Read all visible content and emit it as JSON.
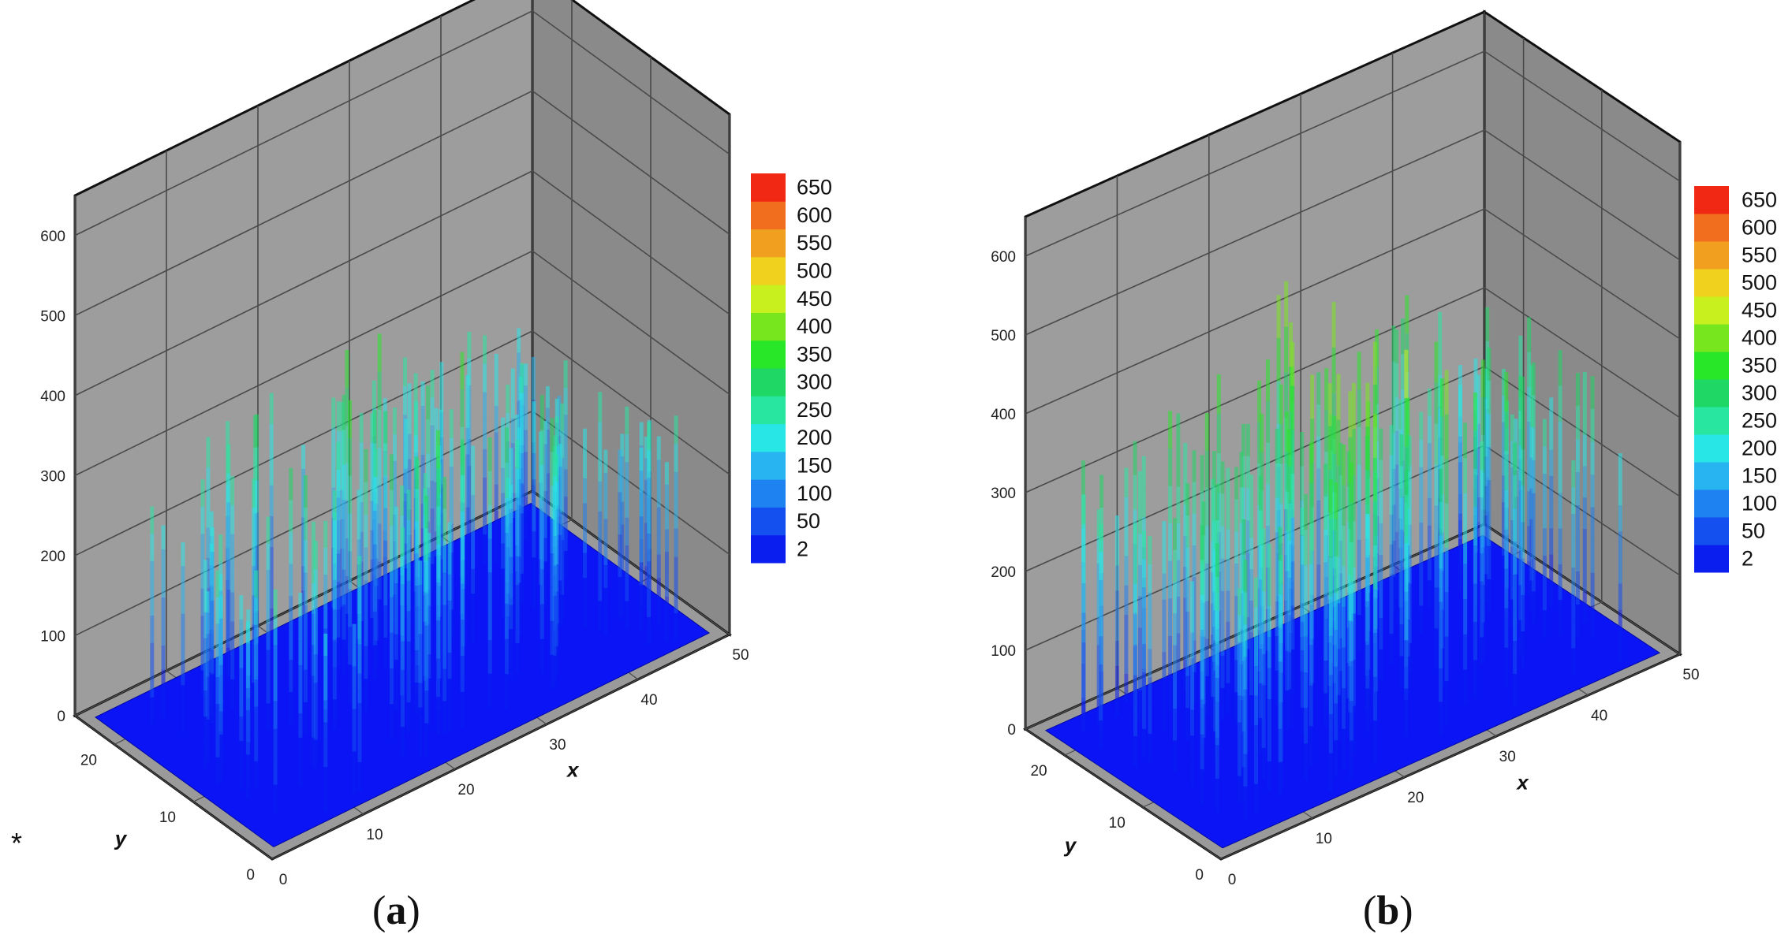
{
  "figure_mark": "*",
  "chart_data": [
    {
      "type": "3d-bar",
      "panel_label": "a",
      "xlabel": "x",
      "ylabel": "y",
      "zlabel": "",
      "xlim": [
        0,
        50
      ],
      "ylim": [
        0,
        25
      ],
      "zlim": [
        0,
        650
      ],
      "x_ticks": [
        0,
        10,
        20,
        30,
        40,
        50
      ],
      "y_ticks": [
        0,
        10,
        20
      ],
      "z_ticks": [
        0,
        100,
        200,
        300,
        400,
        500,
        600
      ],
      "colorbar": {
        "levels": [
          2,
          50,
          100,
          150,
          200,
          250,
          300,
          350,
          400,
          450,
          500,
          550,
          600,
          650
        ],
        "colors": [
          "#0a1ef0",
          "#1450f0",
          "#1e82f0",
          "#28b4f0",
          "#28e6e6",
          "#28e6a0",
          "#1ed764",
          "#28e628",
          "#78e61e",
          "#c8f01e",
          "#f0d21e",
          "#f0a01e",
          "#f06e1e",
          "#f02814"
        ]
      },
      "grid": true,
      "description_series": "columns over base grid, peak heights roughly 200-400",
      "max_height": 400
    },
    {
      "type": "3d-bar",
      "panel_label": "b",
      "xlabel": "x",
      "ylabel": "y",
      "zlabel": "",
      "xlim": [
        0,
        50
      ],
      "ylim": [
        0,
        25
      ],
      "zlim": [
        0,
        650
      ],
      "x_ticks": [
        0,
        10,
        20,
        30,
        40,
        50
      ],
      "y_ticks": [
        0,
        10,
        20
      ],
      "z_ticks": [
        0,
        100,
        200,
        300,
        400,
        500,
        600
      ],
      "colorbar": {
        "levels": [
          2,
          50,
          100,
          150,
          200,
          250,
          300,
          350,
          400,
          450,
          500,
          550,
          600,
          650
        ],
        "colors": [
          "#0a1ef0",
          "#1450f0",
          "#1e82f0",
          "#28b4f0",
          "#28e6e6",
          "#28e6a0",
          "#1ed764",
          "#28e628",
          "#78e61e",
          "#c8f01e",
          "#f0d21e",
          "#f0a01e",
          "#f06e1e",
          "#f02814"
        ]
      },
      "grid": true,
      "max_height": 500
    }
  ]
}
